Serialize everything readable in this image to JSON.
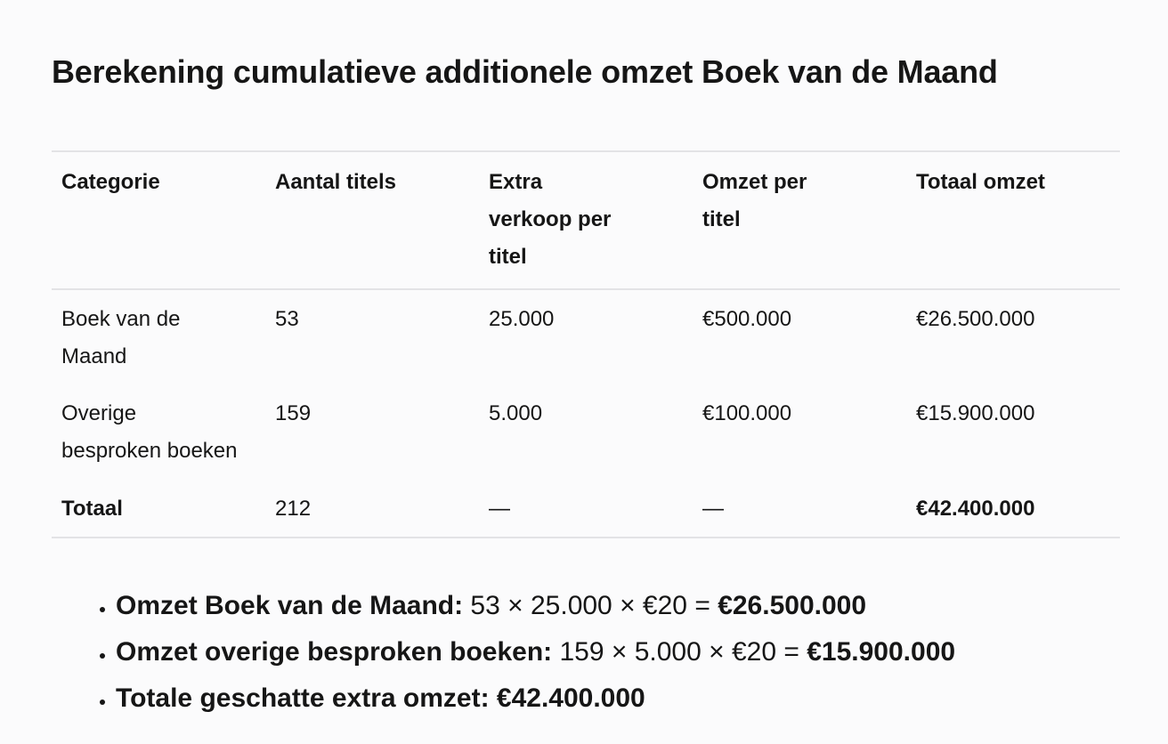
{
  "title": "Berekening cumulatieve additionele omzet Boek van de Maand",
  "table": {
    "headers": [
      "Categorie",
      "Aantal titels",
      "Extra verkoop per titel",
      "Omzet per titel",
      "Totaal omzet"
    ],
    "rows": [
      [
        "Boek van de Maand",
        "53",
        "25.000",
        "€500.000",
        "€26.500.000"
      ],
      [
        "Overige besproken boeken",
        "159",
        "5.000",
        "€100.000",
        "€15.900.000"
      ],
      [
        "Totaal",
        "212",
        "—",
        "—",
        "€42.400.000"
      ]
    ]
  },
  "bullets": [
    {
      "label": "Omzet Boek van de Maand:",
      "formula": " 53 × 25.000 × €20 = ",
      "result": "€26.500.000"
    },
    {
      "label": "Omzet overige besproken boeken:",
      "formula": " 159 × 5.000 × €20 = ",
      "result": "€15.900.000"
    },
    {
      "label": "Totale geschatte extra omzet: €42.400.000",
      "formula": "",
      "result": ""
    }
  ]
}
